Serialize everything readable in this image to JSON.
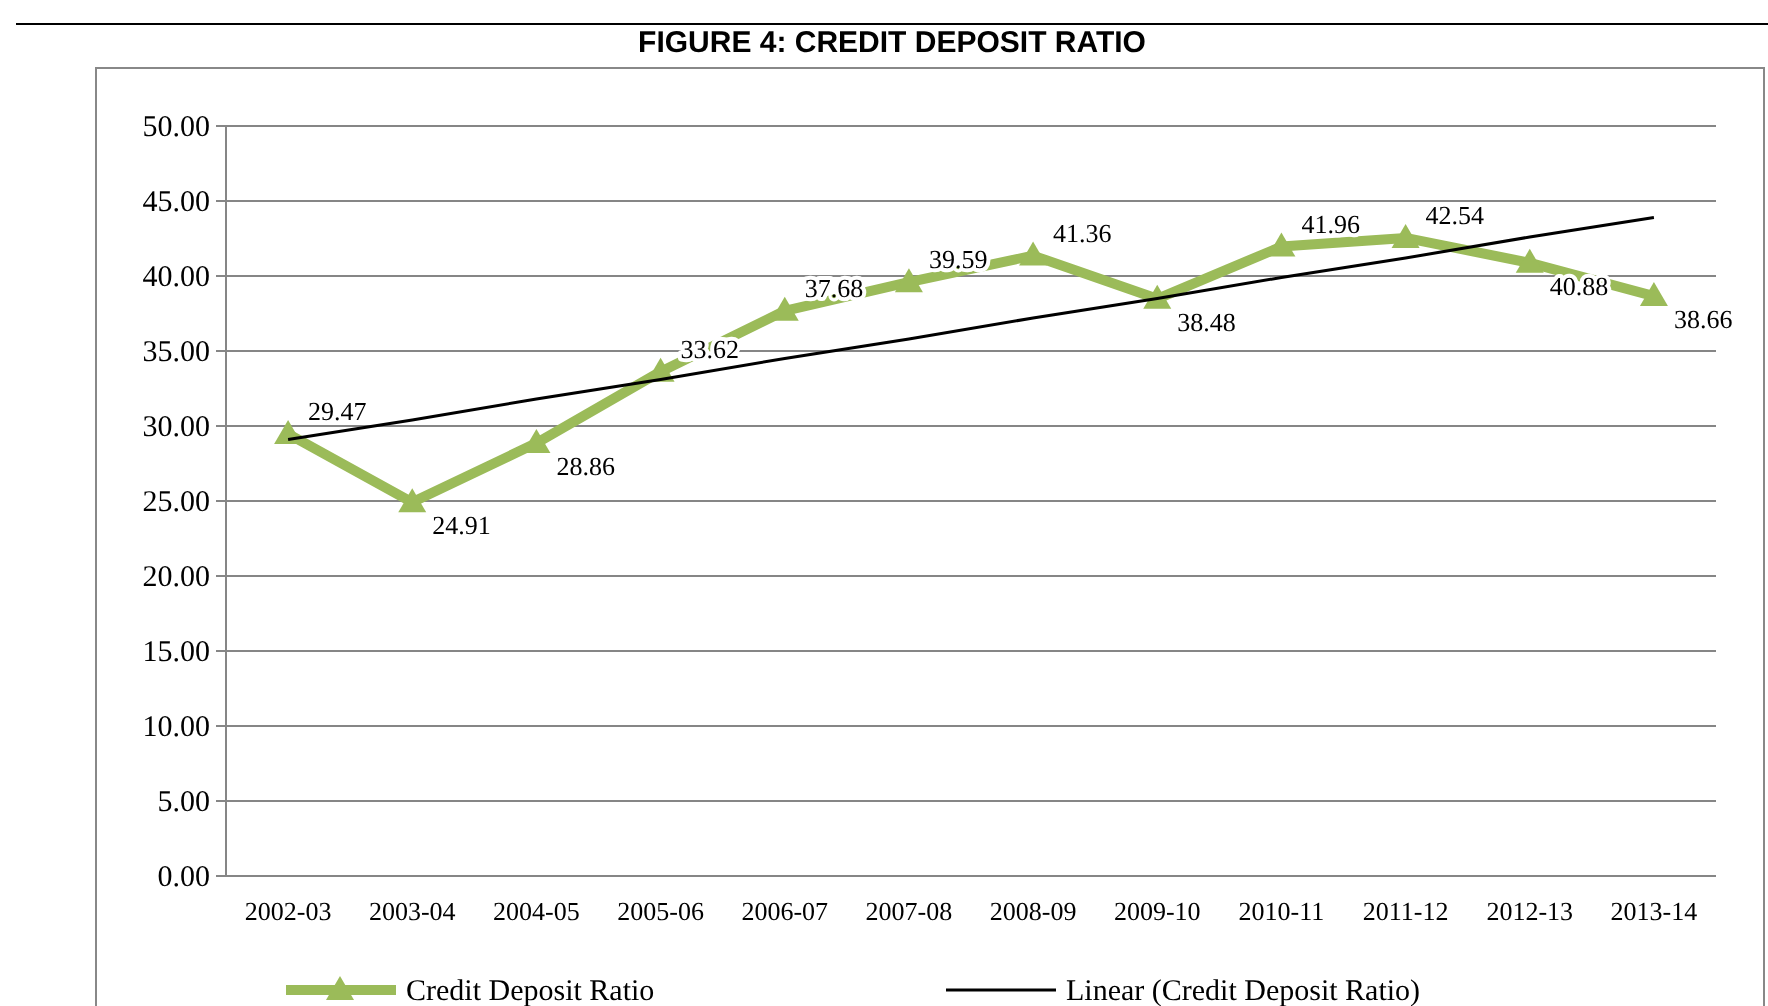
{
  "chart_data": {
    "type": "line",
    "title": "FIGURE 4: CREDIT DEPOSIT RATIO",
    "categories": [
      "2002-03",
      "2003-04",
      "2004-05",
      "2005-06",
      "2006-07",
      "2007-08",
      "2008-09",
      "2009-10",
      "2010-11",
      "2011-12",
      "2012-13",
      "2013-14"
    ],
    "series": [
      {
        "name": "Credit Deposit Ratio",
        "color": "#9bbb59",
        "marker": "triangle",
        "values": [
          29.47,
          24.91,
          28.86,
          33.62,
          37.68,
          39.59,
          41.36,
          38.48,
          41.96,
          42.54,
          40.88,
          38.66
        ],
        "value_labels": [
          "29.47",
          "24.91",
          "28.86",
          "33.62",
          "37.68",
          "39.59",
          "41.36",
          "38.48",
          "41.96",
          "42.54",
          "40.88",
          "38.66"
        ]
      },
      {
        "name": "Linear (Credit Deposit Ratio)",
        "color": "#000000",
        "marker": "none",
        "values": [
          29.1,
          30.4,
          31.8,
          33.1,
          34.5,
          35.8,
          37.2,
          38.5,
          39.9,
          41.2,
          42.6,
          43.9
        ]
      }
    ],
    "ylim": [
      0,
      50
    ],
    "yticks": [
      {
        "value": 0,
        "label": "0.00"
      },
      {
        "value": 5,
        "label": "5.00"
      },
      {
        "value": 10,
        "label": "10.00"
      },
      {
        "value": 15,
        "label": "15.00"
      },
      {
        "value": 20,
        "label": "20.00"
      },
      {
        "value": 25,
        "label": "25.00"
      },
      {
        "value": 30,
        "label": "30.00"
      },
      {
        "value": 35,
        "label": "35.00"
      },
      {
        "value": 40,
        "label": "40.00"
      },
      {
        "value": 45,
        "label": "45.00"
      },
      {
        "value": 50,
        "label": "50.00"
      }
    ],
    "grid": "y",
    "legend": "bottom",
    "line_style": "solid"
  }
}
